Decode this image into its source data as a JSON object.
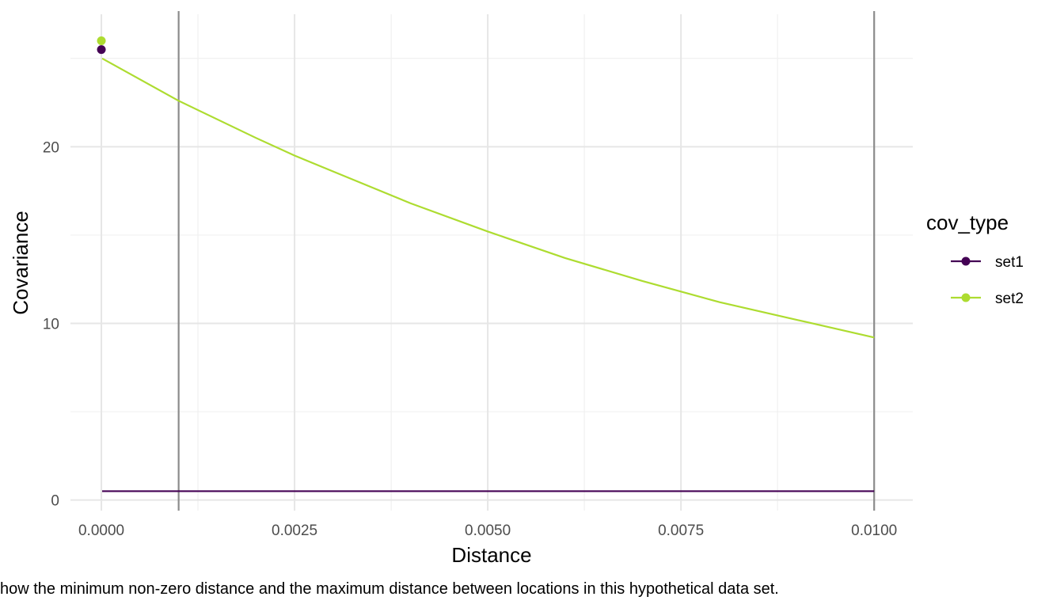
{
  "chart_data": {
    "type": "line",
    "xlabel": "Distance",
    "ylabel": "Covariance",
    "xlim": [
      -0.0004,
      0.0105
    ],
    "ylim": [
      -0.6,
      27.5
    ],
    "x_ticks": [
      0,
      0.0025,
      0.005,
      0.0075,
      0.01
    ],
    "x_tick_labels": [
      "0.0000",
      "0.0025",
      "0.0050",
      "0.0075",
      "0.0100"
    ],
    "y_ticks": [
      0,
      10,
      20
    ],
    "y_tick_labels": [
      "0",
      "10",
      "20"
    ],
    "grid": true,
    "reference_lines_x": [
      0.001,
      0.01
    ],
    "legend": {
      "title": "cov_type",
      "position": "right"
    },
    "series": [
      {
        "name": "set1",
        "color": "#440154",
        "point": {
          "x": 0,
          "y": 25.5
        },
        "line": {
          "x": [
            1e-05,
            0.001,
            0.0025,
            0.005,
            0.0075,
            0.01
          ],
          "y": [
            0.5,
            0.5,
            0.5,
            0.5,
            0.5,
            0.5
          ]
        }
      },
      {
        "name": "set2",
        "color": "#addc30",
        "point": {
          "x": 0,
          "y": 26
        },
        "line": {
          "x": [
            1e-05,
            0.001,
            0.002,
            0.0025,
            0.003,
            0.004,
            0.005,
            0.006,
            0.007,
            0.0075,
            0.008,
            0.009,
            0.01
          ],
          "y": [
            25,
            22.6,
            20.5,
            19.5,
            18.6,
            16.8,
            15.2,
            13.7,
            12.4,
            11.8,
            11.2,
            10.2,
            9.2
          ]
        }
      }
    ],
    "caption": "how the minimum non-zero distance and the maximum distance between locations in this hypothetical data set."
  }
}
